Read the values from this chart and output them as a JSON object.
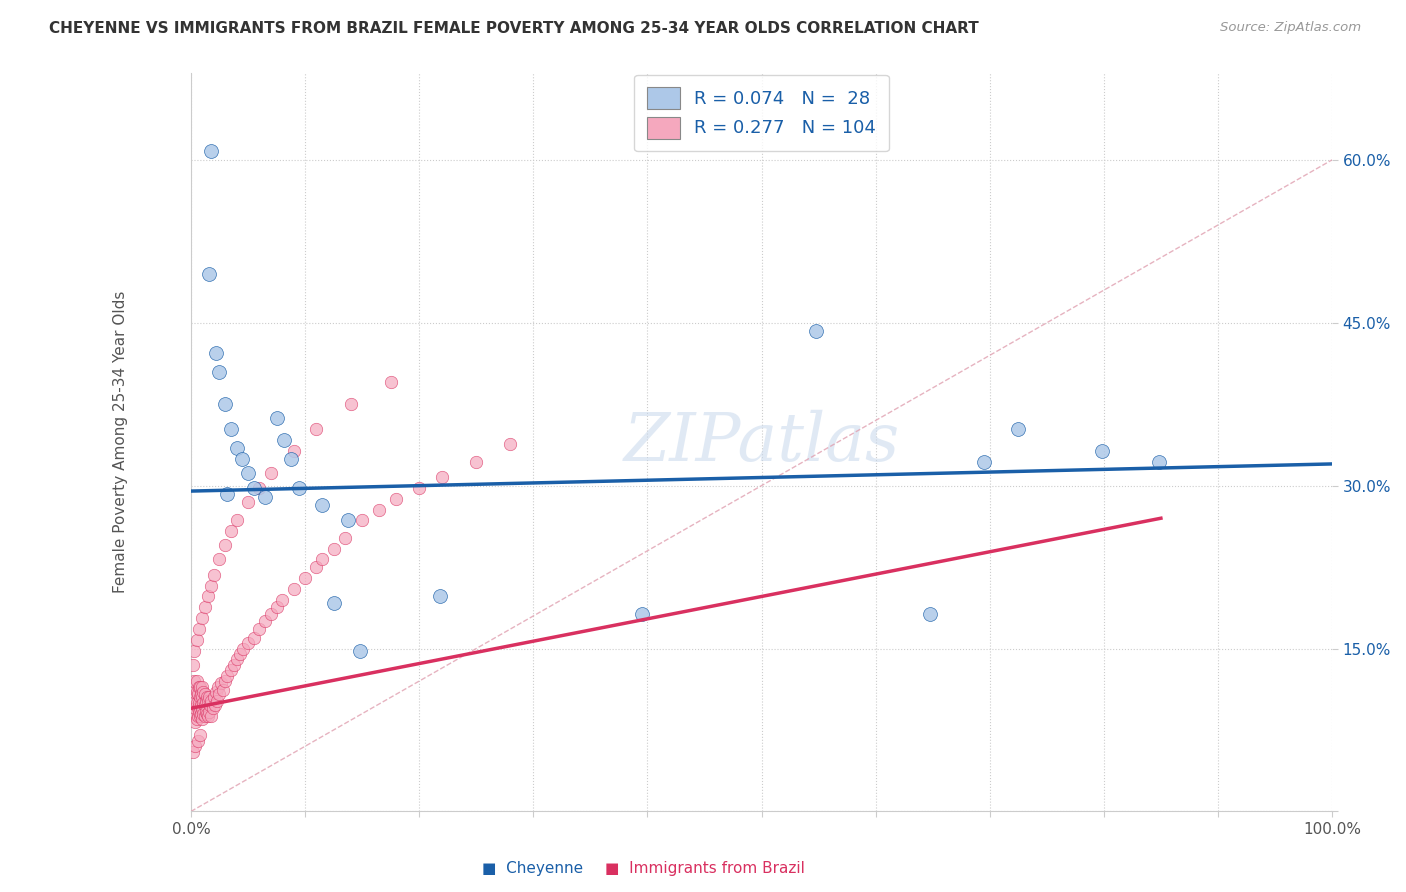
{
  "title": "CHEYENNE VS IMMIGRANTS FROM BRAZIL FEMALE POVERTY AMONG 25-34 YEAR OLDS CORRELATION CHART",
  "source": "Source: ZipAtlas.com",
  "ylabel": "Female Poverty Among 25-34 Year Olds",
  "legend_R": [
    0.074,
    0.277
  ],
  "legend_N": [
    28,
    104
  ],
  "cheyenne_color": "#adc8e8",
  "brazil_color": "#f5a8be",
  "trend_cheyenne_color": "#1a5fa8",
  "trend_brazil_color": "#d93060",
  "ref_line_color": "#e08090",
  "xlim": [
    0.0,
    1.0
  ],
  "ylim": [
    0.0,
    0.68
  ],
  "yticks": [
    0.0,
    0.15,
    0.3,
    0.45,
    0.6
  ],
  "ytick_labels": [
    "",
    "15.0%",
    "30.0%",
    "45.0%",
    "60.0%"
  ],
  "xtick_labels": [
    "0.0%",
    "",
    "",
    "",
    "",
    "",
    "",
    "",
    "",
    "",
    "100.0%"
  ],
  "bottom_legend": [
    "Cheyenne",
    "Immigrants from Brazil"
  ],
  "watermark": "ZIPatlas",
  "cheyenne_x": [
    0.018,
    0.016,
    0.022,
    0.025,
    0.03,
    0.035,
    0.04,
    0.045,
    0.05,
    0.055,
    0.065,
    0.075,
    0.082,
    0.088,
    0.095,
    0.115,
    0.125,
    0.138,
    0.148,
    0.218,
    0.395,
    0.548,
    0.648,
    0.695,
    0.725,
    0.798,
    0.848,
    0.032
  ],
  "cheyenne_y": [
    0.608,
    0.495,
    0.422,
    0.405,
    0.375,
    0.352,
    0.335,
    0.325,
    0.312,
    0.298,
    0.29,
    0.362,
    0.342,
    0.325,
    0.298,
    0.282,
    0.192,
    0.268,
    0.148,
    0.198,
    0.182,
    0.442,
    0.182,
    0.322,
    0.352,
    0.332,
    0.322,
    0.292
  ],
  "brazil_x": [
    0.002,
    0.003,
    0.003,
    0.004,
    0.004,
    0.004,
    0.005,
    0.005,
    0.005,
    0.005,
    0.006,
    0.006,
    0.006,
    0.007,
    0.007,
    0.007,
    0.008,
    0.008,
    0.008,
    0.008,
    0.009,
    0.009,
    0.009,
    0.01,
    0.01,
    0.01,
    0.01,
    0.011,
    0.011,
    0.011,
    0.012,
    0.012,
    0.012,
    0.013,
    0.013,
    0.014,
    0.014,
    0.015,
    0.015,
    0.016,
    0.016,
    0.017,
    0.018,
    0.018,
    0.019,
    0.02,
    0.021,
    0.022,
    0.023,
    0.024,
    0.025,
    0.026,
    0.028,
    0.03,
    0.032,
    0.035,
    0.038,
    0.04,
    0.043,
    0.046,
    0.05,
    0.055,
    0.06,
    0.065,
    0.07,
    0.075,
    0.08,
    0.09,
    0.1,
    0.11,
    0.115,
    0.125,
    0.135,
    0.15,
    0.165,
    0.18,
    0.2,
    0.22,
    0.25,
    0.28,
    0.002,
    0.003,
    0.005,
    0.007,
    0.01,
    0.012,
    0.015,
    0.018,
    0.02,
    0.025,
    0.03,
    0.035,
    0.04,
    0.05,
    0.06,
    0.07,
    0.09,
    0.11,
    0.14,
    0.175,
    0.002,
    0.004,
    0.006,
    0.008
  ],
  "brazil_y": [
    0.1,
    0.11,
    0.12,
    0.082,
    0.09,
    0.095,
    0.085,
    0.1,
    0.11,
    0.12,
    0.088,
    0.095,
    0.108,
    0.092,
    0.1,
    0.115,
    0.088,
    0.095,
    0.105,
    0.115,
    0.09,
    0.098,
    0.108,
    0.085,
    0.095,
    0.105,
    0.115,
    0.09,
    0.1,
    0.11,
    0.088,
    0.098,
    0.108,
    0.092,
    0.102,
    0.09,
    0.105,
    0.088,
    0.102,
    0.092,
    0.105,
    0.098,
    0.088,
    0.102,
    0.095,
    0.105,
    0.098,
    0.11,
    0.102,
    0.115,
    0.108,
    0.118,
    0.112,
    0.12,
    0.125,
    0.13,
    0.135,
    0.14,
    0.145,
    0.15,
    0.155,
    0.16,
    0.168,
    0.175,
    0.182,
    0.188,
    0.195,
    0.205,
    0.215,
    0.225,
    0.232,
    0.242,
    0.252,
    0.268,
    0.278,
    0.288,
    0.298,
    0.308,
    0.322,
    0.338,
    0.135,
    0.148,
    0.158,
    0.168,
    0.178,
    0.188,
    0.198,
    0.208,
    0.218,
    0.232,
    0.245,
    0.258,
    0.268,
    0.285,
    0.298,
    0.312,
    0.332,
    0.352,
    0.375,
    0.395,
    0.055,
    0.06,
    0.065,
    0.07
  ]
}
